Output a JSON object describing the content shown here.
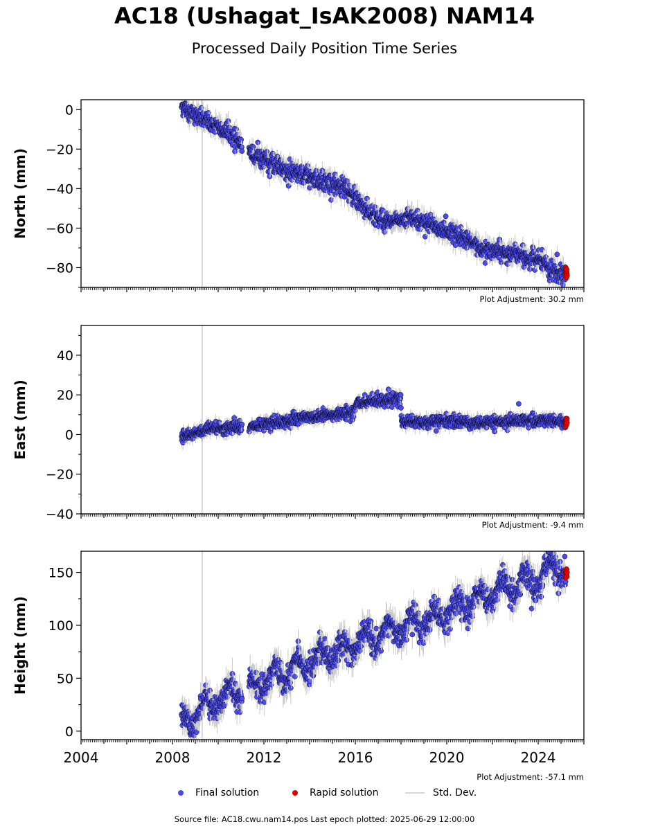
{
  "title": "AC18 (Ushagat_IsAK2008) NAM14",
  "subtitle": "Processed Daily Position Time Series",
  "footer": "Source file: AC18.cwu.nam14.pos  Last epoch plotted: 2025-06-29 12:00:00",
  "legend": {
    "final": "Final solution",
    "rapid": "Rapid solution",
    "stddev": "Std. Dev."
  },
  "colors": {
    "final": "#4a4af0",
    "rapid": "#e00000",
    "stddev": "#c8c8c8",
    "marker_edge": "#000000",
    "vline": "#cccccc"
  },
  "chart_data": {
    "type": "scatter",
    "x_axis": {
      "range": [
        2004.0,
        2026.0
      ],
      "ticks": [
        2004,
        2008,
        2012,
        2016,
        2020,
        2024
      ],
      "tick_labels": [
        "2004",
        "2008",
        "2012",
        "2016",
        "2020",
        "2024"
      ]
    },
    "vertical_line_x": 2009.3,
    "final_solution_span": [
      2008.4,
      2025.2
    ],
    "rapid_solution_span": [
      2025.2,
      2025.5
    ],
    "panels": [
      {
        "ylabel": "North (mm)",
        "ylim": [
          -90,
          5
        ],
        "yticks": [
          0,
          -20,
          -40,
          -60,
          -80
        ],
        "ytick_labels": [
          "0",
          "−20",
          "−40",
          "−60",
          "−80"
        ],
        "plot_adjustment": "Plot Adjustment: 30.2 mm",
        "trend": [
          [
            2008.4,
            2
          ],
          [
            2009.0,
            -3
          ],
          [
            2009.5,
            -6
          ],
          [
            2010.0,
            -9
          ],
          [
            2010.5,
            -12
          ],
          [
            2011.0,
            -17
          ],
          [
            2011.4,
            -22
          ],
          [
            2012.0,
            -25
          ],
          [
            2012.5,
            -28
          ],
          [
            2013.0,
            -31
          ],
          [
            2013.5,
            -33
          ],
          [
            2014.0,
            -34
          ],
          [
            2014.5,
            -36
          ],
          [
            2015.0,
            -37
          ],
          [
            2015.5,
            -40
          ],
          [
            2016.0,
            -45
          ],
          [
            2016.5,
            -51
          ],
          [
            2017.0,
            -55
          ],
          [
            2017.5,
            -57
          ],
          [
            2018.0,
            -57
          ],
          [
            2018.3,
            -54
          ],
          [
            2019.0,
            -57
          ],
          [
            2019.5,
            -59
          ],
          [
            2020.0,
            -62
          ],
          [
            2020.5,
            -64
          ],
          [
            2021.0,
            -67
          ],
          [
            2021.5,
            -70
          ],
          [
            2022.0,
            -71
          ],
          [
            2022.5,
            -73
          ],
          [
            2023.0,
            -73
          ],
          [
            2023.5,
            -75
          ],
          [
            2024.0,
            -76
          ],
          [
            2024.5,
            -80
          ],
          [
            2025.2,
            -84
          ]
        ],
        "gaps": [
          [
            2011.05,
            2011.35
          ]
        ],
        "noise": 2.2,
        "rapid_values": [
          -80,
          -81,
          -82,
          -83,
          -84,
          -85,
          -82,
          -81,
          -83,
          -84
        ]
      },
      {
        "ylabel": "East (mm)",
        "ylim": [
          -40,
          55
        ],
        "yticks": [
          40,
          20,
          0,
          -20,
          -40
        ],
        "ytick_labels": [
          "40",
          "20",
          "0",
          "−20",
          "−40"
        ],
        "plot_adjustment": "Plot Adjustment: -9.4 mm",
        "trend": [
          [
            2008.4,
            -1
          ],
          [
            2009.0,
            1
          ],
          [
            2010.0,
            3
          ],
          [
            2011.0,
            4
          ],
          [
            2011.4,
            4
          ],
          [
            2012.0,
            5
          ],
          [
            2013.0,
            7
          ],
          [
            2014.0,
            9
          ],
          [
            2015.0,
            10
          ],
          [
            2015.9,
            11
          ],
          [
            2016.1,
            16
          ],
          [
            2017.0,
            17
          ],
          [
            2017.99,
            18
          ],
          [
            2018.01,
            7
          ],
          [
            2019.0,
            6
          ],
          [
            2020.0,
            7
          ],
          [
            2021.0,
            6
          ],
          [
            2022.0,
            6
          ],
          [
            2023.0,
            7
          ],
          [
            2024.0,
            7
          ],
          [
            2025.2,
            6
          ]
        ],
        "gaps": [
          [
            2011.05,
            2011.35
          ]
        ],
        "noise": 1.5,
        "rapid_values": [
          4,
          5,
          6,
          7,
          8,
          6,
          5,
          7,
          8,
          6
        ]
      },
      {
        "ylabel": "Height (mm)",
        "ylim": [
          -8,
          170
        ],
        "yticks": [
          150,
          100,
          50,
          0
        ],
        "ytick_labels": [
          "150",
          "100",
          "50",
          "0"
        ],
        "plot_adjustment": "Plot Adjustment: -57.1 mm",
        "trend": [
          [
            2008.4,
            5
          ],
          [
            2009.0,
            18
          ],
          [
            2010.0,
            30
          ],
          [
            2011.0,
            40
          ],
          [
            2011.4,
            44
          ],
          [
            2012.0,
            48
          ],
          [
            2013.0,
            55
          ],
          [
            2014.0,
            65
          ],
          [
            2015.0,
            75
          ],
          [
            2016.0,
            82
          ],
          [
            2017.0,
            92
          ],
          [
            2018.0,
            98
          ],
          [
            2019.0,
            104
          ],
          [
            2020.0,
            112
          ],
          [
            2021.0,
            122
          ],
          [
            2022.0,
            130
          ],
          [
            2023.0,
            138
          ],
          [
            2024.0,
            143
          ],
          [
            2024.6,
            155
          ],
          [
            2025.2,
            150
          ]
        ],
        "gaps": [
          [
            2011.05,
            2011.35
          ]
        ],
        "noise": 6,
        "seasonal_amplitude": 9,
        "rapid_values": [
          145,
          147,
          149,
          150,
          151,
          152,
          153,
          148,
          146,
          150
        ]
      }
    ]
  }
}
